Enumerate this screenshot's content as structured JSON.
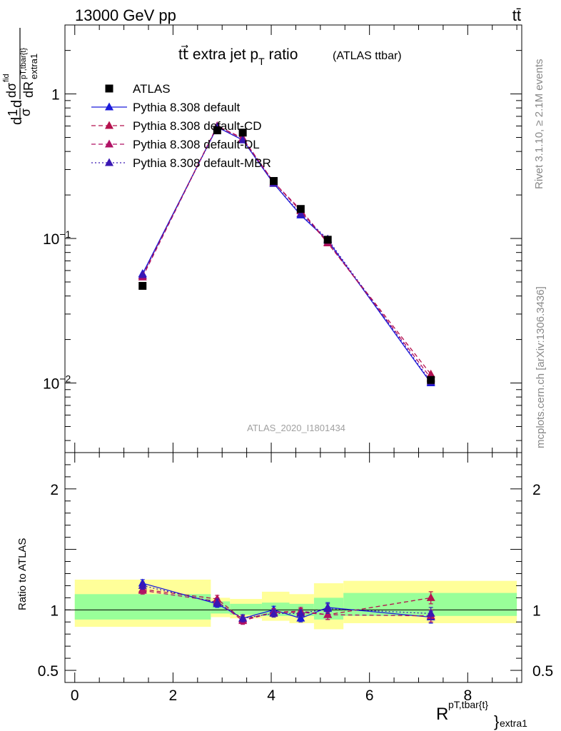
{
  "header": {
    "left": "13000 GeV pp",
    "right": "tt̄"
  },
  "side_text": {
    "rivet": "Rivet 3.1.10, ≥ 2.1M events",
    "mcplots": "mcplots.cern.ch [arXiv:1306.3436]"
  },
  "chart_data": {
    "type": "line",
    "title_main": "tt⃗ extra jet p",
    "title_sub": "T",
    "title_tail": " ratio",
    "title_small": "(ATLAS ttbar)",
    "watermark": "ATLAS_2020_I1801434",
    "ylabel": "d1dσ dσfid dRextra1pT,tbar{t}",
    "ylabel_parts": {
      "d": "d",
      "one": "1",
      "sigma": "σ",
      "d2": "d",
      "dsigma": "dσ",
      "fid": "fid",
      "dR": "dR",
      "sup": "pT,tbar{t}",
      "sub": "extra1"
    },
    "xlabel_parts": {
      "main": "R",
      "sup": "pT,tbar{t}",
      "sub": "extra1"
    },
    "ratio_ylabel": "Ratio to ATLAS",
    "x_range": [
      -0.2,
      9.1
    ],
    "y_range_log": [
      0.0033,
      3.0
    ],
    "ratio_range": [
      0.4,
      2.3
    ],
    "x_ticks": [
      "0",
      "2",
      "4",
      "6",
      "8"
    ],
    "x_tick_values": [
      0,
      2,
      4,
      6,
      8
    ],
    "y_ticks": [
      {
        "value": 1,
        "base": "1",
        "exp": ""
      },
      {
        "value": 0.1,
        "base": "10",
        "exp": "−1"
      },
      {
        "value": 0.01,
        "base": "10",
        "exp": "−2"
      }
    ],
    "ratio_ticks_left": [
      "2",
      "1",
      "0.5"
    ],
    "ratio_ticks_right": [
      "2",
      "1",
      "0.5"
    ],
    "ratio_tick_values": [
      2,
      1,
      0.5
    ],
    "x": [
      1.38,
      2.9,
      3.42,
      4.05,
      4.6,
      5.15,
      7.25
    ],
    "bins": [
      [
        0,
        2.77
      ],
      [
        2.77,
        3.16
      ],
      [
        3.16,
        3.81
      ],
      [
        3.81,
        4.37
      ],
      [
        4.37,
        4.87
      ],
      [
        4.87,
        5.47
      ],
      [
        5.47,
        9.0
      ]
    ],
    "band_inner": [
      [
        0.92,
        1.13
      ],
      [
        0.97,
        1.07
      ],
      [
        0.96,
        1.05
      ],
      [
        0.95,
        1.06
      ],
      [
        0.95,
        1.05
      ],
      [
        0.92,
        1.1
      ],
      [
        0.95,
        1.14
      ]
    ],
    "band_outer": [
      [
        0.86,
        1.25
      ],
      [
        0.94,
        1.1
      ],
      [
        0.93,
        1.09
      ],
      [
        0.91,
        1.15
      ],
      [
        0.89,
        1.13
      ],
      [
        0.84,
        1.22
      ],
      [
        0.89,
        1.24
      ]
    ],
    "legend_position": "top-left",
    "series": [
      {
        "name": "ATLAS",
        "marker": "square",
        "dash": "none",
        "color": "#000000",
        "values": [
          0.047,
          0.56,
          0.54,
          0.25,
          0.16,
          0.098,
          0.0105
        ],
        "ratio": [
          1,
          1,
          1,
          1,
          1,
          1,
          1
        ]
      },
      {
        "name": "Pythia 8.308 default",
        "marker": "triangle",
        "dash": "solid",
        "color": "#1a1adb",
        "values": [
          0.057,
          0.59,
          0.48,
          0.24,
          0.145,
          0.097,
          0.01
        ],
        "ratio": [
          1.22,
          1.05,
          0.93,
          1.0,
          0.93,
          1.02,
          0.94
        ],
        "ratio_err": [
          0.03,
          0.03,
          0.03,
          0.03,
          0.03,
          0.04,
          0.05
        ]
      },
      {
        "name": "Pythia 8.308 default-CD",
        "marker": "triangle",
        "dash": "dashed",
        "color": "#b5114d",
        "values": [
          0.055,
          0.6,
          0.49,
          0.245,
          0.155,
          0.093,
          0.0115
        ],
        "ratio": [
          1.17,
          1.09,
          0.92,
          0.98,
          0.98,
          0.96,
          1.1
        ],
        "ratio_err": [
          0.03,
          0.03,
          0.03,
          0.03,
          0.03,
          0.04,
          0.05
        ]
      },
      {
        "name": "Pythia 8.308 default-DL",
        "marker": "triangle",
        "dash": "dashed",
        "color": "#b01265",
        "values": [
          0.054,
          0.6,
          0.495,
          0.245,
          0.158,
          0.094,
          0.0108
        ],
        "ratio": [
          1.16,
          1.07,
          0.91,
          0.98,
          0.99,
          0.96,
          0.95
        ],
        "ratio_err": [
          0.03,
          0.03,
          0.03,
          0.03,
          0.03,
          0.04,
          0.05
        ]
      },
      {
        "name": "Pythia 8.308 default-MBR",
        "marker": "triangle",
        "dash": "dotted",
        "color": "#3a17b3",
        "values": [
          0.056,
          0.59,
          0.48,
          0.24,
          0.148,
          0.099,
          0.0102
        ],
        "ratio": [
          1.2,
          1.06,
          0.93,
          0.97,
          0.97,
          1.01,
          0.97
        ],
        "ratio_err": [
          0.03,
          0.03,
          0.03,
          0.03,
          0.03,
          0.04,
          0.05
        ]
      }
    ]
  }
}
